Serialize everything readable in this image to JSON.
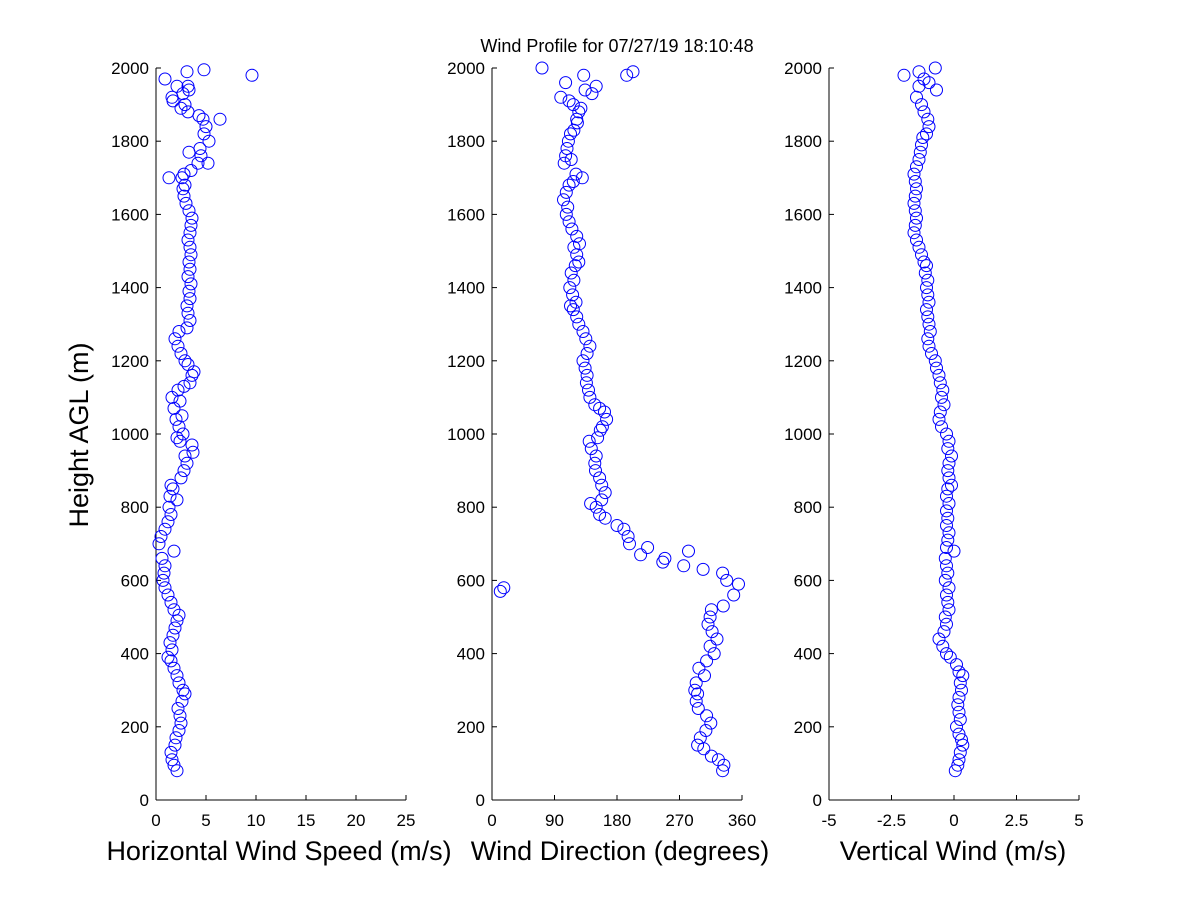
{
  "title": "Wind Profile for  07/27/19 18:10:48",
  "chart_data": [
    {
      "type": "scatter",
      "name": "speed",
      "xlabel": "Horizontal Wind Speed (m/s)",
      "ylabel": "Height AGL (m)",
      "xlim": [
        0,
        25
      ],
      "ylim": [
        0,
        2000
      ],
      "xticks": [
        "0",
        "5",
        "10",
        "15",
        "20",
        "25"
      ],
      "yticks": [
        "0",
        "200",
        "400",
        "600",
        "800",
        "1000",
        "1200",
        "1400",
        "1600",
        "1800",
        "2000"
      ],
      "marker": "open-circle",
      "color": "#0000ff",
      "points": [
        [
          2.1,
          80
        ],
        [
          1.8,
          95
        ],
        [
          1.6,
          110
        ],
        [
          1.5,
          130
        ],
        [
          1.9,
          150
        ],
        [
          2.0,
          170
        ],
        [
          2.3,
          190
        ],
        [
          2.5,
          210
        ],
        [
          2.4,
          230
        ],
        [
          2.2,
          250
        ],
        [
          2.6,
          270
        ],
        [
          2.9,
          290
        ],
        [
          2.7,
          300
        ],
        [
          2.3,
          320
        ],
        [
          2.1,
          340
        ],
        [
          1.8,
          360
        ],
        [
          1.5,
          380
        ],
        [
          1.2,
          390
        ],
        [
          1.6,
          410
        ],
        [
          1.4,
          430
        ],
        [
          1.7,
          450
        ],
        [
          1.9,
          470
        ],
        [
          2.1,
          490
        ],
        [
          2.3,
          505
        ],
        [
          1.8,
          520
        ],
        [
          1.5,
          540
        ],
        [
          1.2,
          560
        ],
        [
          0.9,
          580
        ],
        [
          0.7,
          600
        ],
        [
          0.8,
          620
        ],
        [
          0.9,
          640
        ],
        [
          0.6,
          660
        ],
        [
          1.8,
          680
        ],
        [
          0.3,
          700
        ],
        [
          0.5,
          720
        ],
        [
          0.9,
          740
        ],
        [
          1.2,
          760
        ],
        [
          1.5,
          780
        ],
        [
          1.3,
          800
        ],
        [
          2.1,
          820
        ],
        [
          1.4,
          830
        ],
        [
          1.7,
          850
        ],
        [
          1.5,
          860
        ],
        [
          2.5,
          880
        ],
        [
          2.8,
          900
        ],
        [
          3.1,
          920
        ],
        [
          2.9,
          940
        ],
        [
          3.7,
          950
        ],
        [
          3.6,
          970
        ],
        [
          2.4,
          980
        ],
        [
          2.1,
          990
        ],
        [
          2.7,
          1000
        ],
        [
          2.3,
          1020
        ],
        [
          2.0,
          1040
        ],
        [
          2.6,
          1050
        ],
        [
          1.8,
          1070
        ],
        [
          2.4,
          1090
        ],
        [
          1.6,
          1100
        ],
        [
          2.2,
          1120
        ],
        [
          2.8,
          1130
        ],
        [
          3.4,
          1140
        ],
        [
          3.6,
          1160
        ],
        [
          3.8,
          1170
        ],
        [
          3.2,
          1190
        ],
        [
          2.9,
          1200
        ],
        [
          2.5,
          1220
        ],
        [
          2.2,
          1240
        ],
        [
          1.9,
          1260
        ],
        [
          2.3,
          1280
        ],
        [
          3.1,
          1290
        ],
        [
          3.4,
          1310
        ],
        [
          3.2,
          1330
        ],
        [
          3.1,
          1350
        ],
        [
          3.4,
          1370
        ],
        [
          3.3,
          1390
        ],
        [
          3.5,
          1410
        ],
        [
          3.2,
          1430
        ],
        [
          3.4,
          1450
        ],
        [
          3.3,
          1470
        ],
        [
          3.5,
          1490
        ],
        [
          3.4,
          1510
        ],
        [
          3.2,
          1530
        ],
        [
          3.4,
          1550
        ],
        [
          3.5,
          1570
        ],
        [
          3.6,
          1590
        ],
        [
          3.3,
          1610
        ],
        [
          3.0,
          1630
        ],
        [
          2.8,
          1650
        ],
        [
          2.7,
          1670
        ],
        [
          2.9,
          1680
        ],
        [
          2.6,
          1700
        ],
        [
          1.3,
          1700
        ],
        [
          2.8,
          1710
        ],
        [
          3.5,
          1720
        ],
        [
          4.2,
          1740
        ],
        [
          5.2,
          1740
        ],
        [
          4.5,
          1760
        ],
        [
          3.3,
          1770
        ],
        [
          4.4,
          1780
        ],
        [
          5.3,
          1800
        ],
        [
          4.8,
          1820
        ],
        [
          5.0,
          1840
        ],
        [
          4.7,
          1860
        ],
        [
          6.4,
          1860
        ],
        [
          4.3,
          1870
        ],
        [
          3.2,
          1880
        ],
        [
          2.5,
          1890
        ],
        [
          2.9,
          1900
        ],
        [
          1.7,
          1910
        ],
        [
          1.6,
          1920
        ],
        [
          2.7,
          1930
        ],
        [
          3.3,
          1940
        ],
        [
          3.2,
          1950
        ],
        [
          2.1,
          1950
        ],
        [
          0.9,
          1970
        ],
        [
          9.6,
          1980
        ],
        [
          4.8,
          1995
        ],
        [
          3.1,
          1990
        ]
      ]
    },
    {
      "type": "scatter",
      "name": "direction",
      "xlabel": "Wind Direction (degrees)",
      "ylabel": "",
      "xlim": [
        0,
        360
      ],
      "ylim": [
        0,
        2000
      ],
      "xticks": [
        "0",
        "90",
        "180",
        "270",
        "360"
      ],
      "yticks": [
        "0",
        "200",
        "400",
        "600",
        "800",
        "1000",
        "1200",
        "1400",
        "1600",
        "1800",
        "2000"
      ],
      "marker": "open-circle",
      "color": "#0000ff",
      "points": [
        [
          332,
          80
        ],
        [
          334,
          95
        ],
        [
          326,
          110
        ],
        [
          316,
          120
        ],
        [
          305,
          140
        ],
        [
          296,
          150
        ],
        [
          300,
          170
        ],
        [
          308,
          190
        ],
        [
          315,
          210
        ],
        [
          309,
          230
        ],
        [
          297,
          250
        ],
        [
          294,
          270
        ],
        [
          296,
          290
        ],
        [
          292,
          300
        ],
        [
          294,
          320
        ],
        [
          306,
          340
        ],
        [
          298,
          360
        ],
        [
          309,
          380
        ],
        [
          320,
          400
        ],
        [
          314,
          420
        ],
        [
          324,
          440
        ],
        [
          317,
          460
        ],
        [
          311,
          480
        ],
        [
          314,
          500
        ],
        [
          316,
          520
        ],
        [
          333,
          530
        ],
        [
          348,
          560
        ],
        [
          12,
          570
        ],
        [
          17,
          580
        ],
        [
          355,
          590
        ],
        [
          338,
          600
        ],
        [
          332,
          620
        ],
        [
          304,
          630
        ],
        [
          276,
          640
        ],
        [
          283,
          680
        ],
        [
          246,
          650
        ],
        [
          249,
          660
        ],
        [
          214,
          670
        ],
        [
          224,
          690
        ],
        [
          198,
          700
        ],
        [
          196,
          720
        ],
        [
          190,
          740
        ],
        [
          180,
          750
        ],
        [
          163,
          770
        ],
        [
          155,
          780
        ],
        [
          150,
          800
        ],
        [
          142,
          810
        ],
        [
          158,
          820
        ],
        [
          163,
          840
        ],
        [
          158,
          860
        ],
        [
          155,
          880
        ],
        [
          149,
          900
        ],
        [
          148,
          920
        ],
        [
          150,
          940
        ],
        [
          143,
          960
        ],
        [
          140,
          980
        ],
        [
          152,
          990
        ],
        [
          156,
          1010
        ],
        [
          159,
          1020
        ],
        [
          165,
          1040
        ],
        [
          162,
          1060
        ],
        [
          155,
          1070
        ],
        [
          148,
          1080
        ],
        [
          141,
          1100
        ],
        [
          139,
          1120
        ],
        [
          136,
          1140
        ],
        [
          137,
          1160
        ],
        [
          134,
          1180
        ],
        [
          131,
          1200
        ],
        [
          137,
          1220
        ],
        [
          141,
          1240
        ],
        [
          135,
          1260
        ],
        [
          131,
          1280
        ],
        [
          125,
          1300
        ],
        [
          122,
          1320
        ],
        [
          117,
          1340
        ],
        [
          113,
          1350
        ],
        [
          121,
          1360
        ],
        [
          116,
          1380
        ],
        [
          112,
          1400
        ],
        [
          118,
          1420
        ],
        [
          114,
          1440
        ],
        [
          120,
          1460
        ],
        [
          125,
          1470
        ],
        [
          122,
          1490
        ],
        [
          118,
          1510
        ],
        [
          126,
          1520
        ],
        [
          122,
          1540
        ],
        [
          115,
          1560
        ],
        [
          111,
          1580
        ],
        [
          107,
          1600
        ],
        [
          109,
          1620
        ],
        [
          103,
          1640
        ],
        [
          107,
          1660
        ],
        [
          111,
          1680
        ],
        [
          117,
          1690
        ],
        [
          130,
          1700
        ],
        [
          121,
          1710
        ],
        [
          104,
          1740
        ],
        [
          114,
          1750
        ],
        [
          106,
          1760
        ],
        [
          108,
          1780
        ],
        [
          110,
          1800
        ],
        [
          113,
          1820
        ],
        [
          118,
          1830
        ],
        [
          123,
          1850
        ],
        [
          122,
          1860
        ],
        [
          125,
          1880
        ],
        [
          117,
          1900
        ],
        [
          99,
          1920
        ],
        [
          111,
          1910
        ],
        [
          128,
          1890
        ],
        [
          134,
          1940
        ],
        [
          150,
          1950
        ],
        [
          144,
          1930
        ],
        [
          106,
          1960
        ],
        [
          132,
          1980
        ],
        [
          194,
          1980
        ],
        [
          203,
          1990
        ],
        [
          72,
          2000
        ]
      ]
    },
    {
      "type": "scatter",
      "name": "vertical",
      "xlabel": "Vertical Wind (m/s)",
      "ylabel": "",
      "xlim": [
        -5,
        5
      ],
      "ylim": [
        0,
        2000
      ],
      "xticks": [
        "-5",
        "-2.5",
        "0",
        "2.5",
        "5"
      ],
      "yticks": [
        "0",
        "200",
        "400",
        "600",
        "800",
        "1000",
        "1200",
        "1400",
        "1600",
        "1800",
        "2000"
      ],
      "marker": "open-circle",
      "color": "#0000ff",
      "points": [
        [
          0.05,
          80
        ],
        [
          0.15,
          95
        ],
        [
          0.2,
          110
        ],
        [
          0.25,
          130
        ],
        [
          0.35,
          150
        ],
        [
          0.3,
          165
        ],
        [
          0.2,
          180
        ],
        [
          0.1,
          200
        ],
        [
          0.25,
          220
        ],
        [
          0.2,
          240
        ],
        [
          0.15,
          260
        ],
        [
          0.2,
          280
        ],
        [
          0.3,
          300
        ],
        [
          0.25,
          320
        ],
        [
          0.35,
          340
        ],
        [
          0.2,
          350
        ],
        [
          0.1,
          370
        ],
        [
          -0.15,
          390
        ],
        [
          -0.3,
          400
        ],
        [
          -0.45,
          420
        ],
        [
          -0.6,
          440
        ],
        [
          -0.4,
          460
        ],
        [
          -0.3,
          480
        ],
        [
          -0.35,
          500
        ],
        [
          -0.2,
          520
        ],
        [
          -0.25,
          540
        ],
        [
          -0.3,
          560
        ],
        [
          -0.2,
          580
        ],
        [
          -0.35,
          600
        ],
        [
          -0.25,
          620
        ],
        [
          -0.3,
          640
        ],
        [
          -0.35,
          660
        ],
        [
          0.0,
          680
        ],
        [
          -0.3,
          690
        ],
        [
          -0.25,
          710
        ],
        [
          -0.2,
          730
        ],
        [
          -0.3,
          750
        ],
        [
          -0.25,
          770
        ],
        [
          -0.3,
          790
        ],
        [
          -0.2,
          810
        ],
        [
          -0.3,
          830
        ],
        [
          -0.25,
          850
        ],
        [
          -0.1,
          860
        ],
        [
          -0.2,
          880
        ],
        [
          -0.25,
          900
        ],
        [
          -0.2,
          920
        ],
        [
          -0.1,
          940
        ],
        [
          -0.25,
          960
        ],
        [
          -0.2,
          980
        ],
        [
          -0.3,
          1000
        ],
        [
          -0.5,
          1020
        ],
        [
          -0.6,
          1040
        ],
        [
          -0.55,
          1060
        ],
        [
          -0.4,
          1080
        ],
        [
          -0.5,
          1100
        ],
        [
          -0.45,
          1120
        ],
        [
          -0.55,
          1140
        ],
        [
          -0.6,
          1160
        ],
        [
          -0.7,
          1180
        ],
        [
          -0.75,
          1200
        ],
        [
          -0.9,
          1220
        ],
        [
          -1.0,
          1240
        ],
        [
          -1.05,
          1260
        ],
        [
          -0.95,
          1280
        ],
        [
          -1.0,
          1300
        ],
        [
          -1.05,
          1320
        ],
        [
          -1.1,
          1340
        ],
        [
          -1.0,
          1360
        ],
        [
          -1.05,
          1380
        ],
        [
          -1.1,
          1400
        ],
        [
          -1.05,
          1420
        ],
        [
          -1.15,
          1440
        ],
        [
          -1.1,
          1460
        ],
        [
          -1.2,
          1470
        ],
        [
          -1.3,
          1490
        ],
        [
          -1.4,
          1510
        ],
        [
          -1.5,
          1530
        ],
        [
          -1.6,
          1550
        ],
        [
          -1.55,
          1570
        ],
        [
          -1.5,
          1590
        ],
        [
          -1.55,
          1610
        ],
        [
          -1.6,
          1630
        ],
        [
          -1.55,
          1650
        ],
        [
          -1.5,
          1670
        ],
        [
          -1.55,
          1690
        ],
        [
          -1.6,
          1710
        ],
        [
          -1.5,
          1730
        ],
        [
          -1.4,
          1750
        ],
        [
          -1.35,
          1770
        ],
        [
          -1.3,
          1790
        ],
        [
          -1.25,
          1810
        ],
        [
          -1.1,
          1820
        ],
        [
          -1.0,
          1840
        ],
        [
          -1.05,
          1860
        ],
        [
          -1.2,
          1880
        ],
        [
          -1.3,
          1900
        ],
        [
          -1.5,
          1920
        ],
        [
          -0.7,
          1940
        ],
        [
          -1.4,
          1950
        ],
        [
          -1.0,
          1960
        ],
        [
          -1.2,
          1970
        ],
        [
          -2.0,
          1980
        ],
        [
          -1.4,
          1990
        ],
        [
          -0.75,
          2000
        ]
      ]
    }
  ]
}
